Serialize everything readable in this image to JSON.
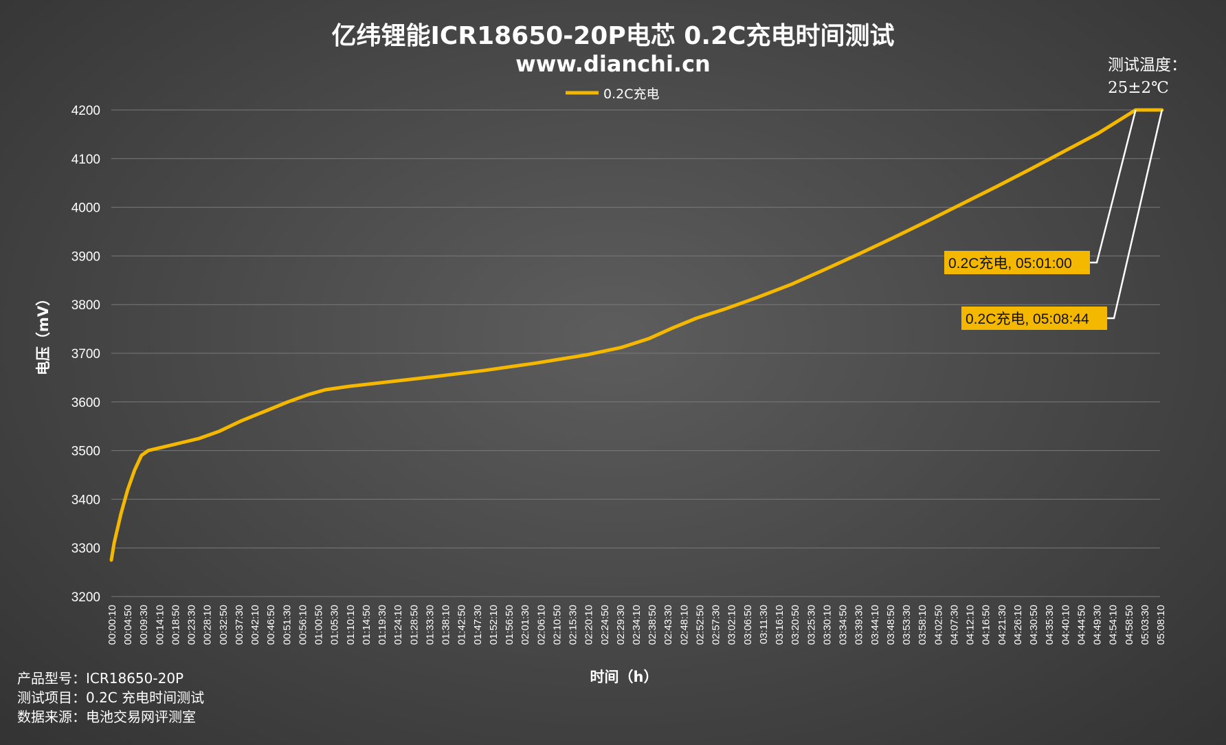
{
  "chart_data": {
    "type": "line",
    "title": "亿纬锂能ICR18650-20P电芯 0.2C充电时间测试",
    "subtitle": "www.dianchi.cn",
    "xlabel": "时间（h）",
    "ylabel": "电压（mV）",
    "ylim": [
      3200,
      4200
    ],
    "y_ticks": [
      3200,
      3300,
      3400,
      3500,
      3600,
      3700,
      3800,
      3900,
      4000,
      4100,
      4200
    ],
    "x_range": [
      "00:00:10",
      "05:08:10"
    ],
    "x_tick_labels": [
      "00:00:10",
      "00:04:50",
      "00:09:30",
      "00:14:10",
      "00:18:50",
      "00:23:30",
      "00:28:10",
      "00:32:50",
      "00:37:30",
      "00:42:10",
      "00:46:50",
      "00:51:30",
      "00:56:10",
      "01:00:50",
      "01:05:30",
      "01:10:10",
      "01:14:50",
      "01:19:30",
      "01:24:10",
      "01:28:50",
      "01:33:30",
      "01:38:10",
      "01:42:50",
      "01:47:30",
      "01:52:10",
      "01:56:50",
      "02:01:30",
      "02:06:10",
      "02:10:50",
      "02:15:30",
      "02:20:10",
      "02:24:50",
      "02:29:30",
      "02:34:10",
      "02:38:50",
      "02:43:30",
      "02:48:10",
      "02:52:50",
      "02:57:30",
      "03:02:10",
      "03:06:50",
      "03:11:30",
      "03:16:10",
      "03:20:50",
      "03:25:30",
      "03:30:10",
      "03:34:50",
      "03:39:30",
      "03:44:10",
      "03:48:50",
      "03:53:30",
      "03:58:10",
      "04:02:50",
      "04:07:30",
      "04:12:10",
      "04:16:50",
      "04:21:30",
      "04:26:10",
      "04:30:50",
      "04:35:30",
      "04:40:10",
      "04:44:50",
      "04:49:30",
      "04:54:10",
      "04:58:50",
      "05:03:30",
      "05:08:10"
    ],
    "grid": true,
    "legend_position": "top-center",
    "series": [
      {
        "name": "0.2C充电",
        "color": "#f5b800",
        "points": [
          [
            "00:00:10",
            3275
          ],
          [
            "00:01:00",
            3310
          ],
          [
            "00:03:00",
            3370
          ],
          [
            "00:05:00",
            3420
          ],
          [
            "00:07:00",
            3460
          ],
          [
            "00:09:00",
            3490
          ],
          [
            "00:11:00",
            3500
          ],
          [
            "00:14:00",
            3505
          ],
          [
            "00:20:00",
            3515
          ],
          [
            "00:26:00",
            3525
          ],
          [
            "00:32:00",
            3540
          ],
          [
            "00:38:00",
            3560
          ],
          [
            "00:45:00",
            3580
          ],
          [
            "00:52:00",
            3600
          ],
          [
            "00:58:00",
            3615
          ],
          [
            "01:03:00",
            3625
          ],
          [
            "01:10:00",
            3632
          ],
          [
            "01:20:00",
            3640
          ],
          [
            "01:35:00",
            3652
          ],
          [
            "01:50:00",
            3665
          ],
          [
            "02:05:00",
            3680
          ],
          [
            "02:20:00",
            3697
          ],
          [
            "02:30:00",
            3712
          ],
          [
            "02:38:00",
            3730
          ],
          [
            "02:45:00",
            3752
          ],
          [
            "02:52:00",
            3772
          ],
          [
            "03:00:00",
            3790
          ],
          [
            "03:10:00",
            3815
          ],
          [
            "03:20:00",
            3842
          ],
          [
            "03:30:00",
            3873
          ],
          [
            "03:40:00",
            3905
          ],
          [
            "03:50:00",
            3938
          ],
          [
            "04:00:00",
            3972
          ],
          [
            "04:10:00",
            4007
          ],
          [
            "04:20:00",
            4042
          ],
          [
            "04:30:00",
            4078
          ],
          [
            "04:40:00",
            4115
          ],
          [
            "04:50:00",
            4152
          ],
          [
            "05:01:00",
            4200
          ],
          [
            "05:08:44",
            4200
          ]
        ]
      }
    ],
    "annotations": [
      {
        "label": "0.2C充电, 05:01:00",
        "x": "05:01:00",
        "y": 4200
      },
      {
        "label": "0.2C充电, 05:08:44",
        "x": "05:08:44",
        "y": 4200
      }
    ],
    "temperature_note": [
      "测试温度：",
      "25±2℃"
    ]
  },
  "footer": {
    "line1": "产品型号：ICR18650-20P",
    "line2": "测试项目：0.2C 充电时间测试",
    "line3": "数据来源：电池交易网评测室"
  }
}
